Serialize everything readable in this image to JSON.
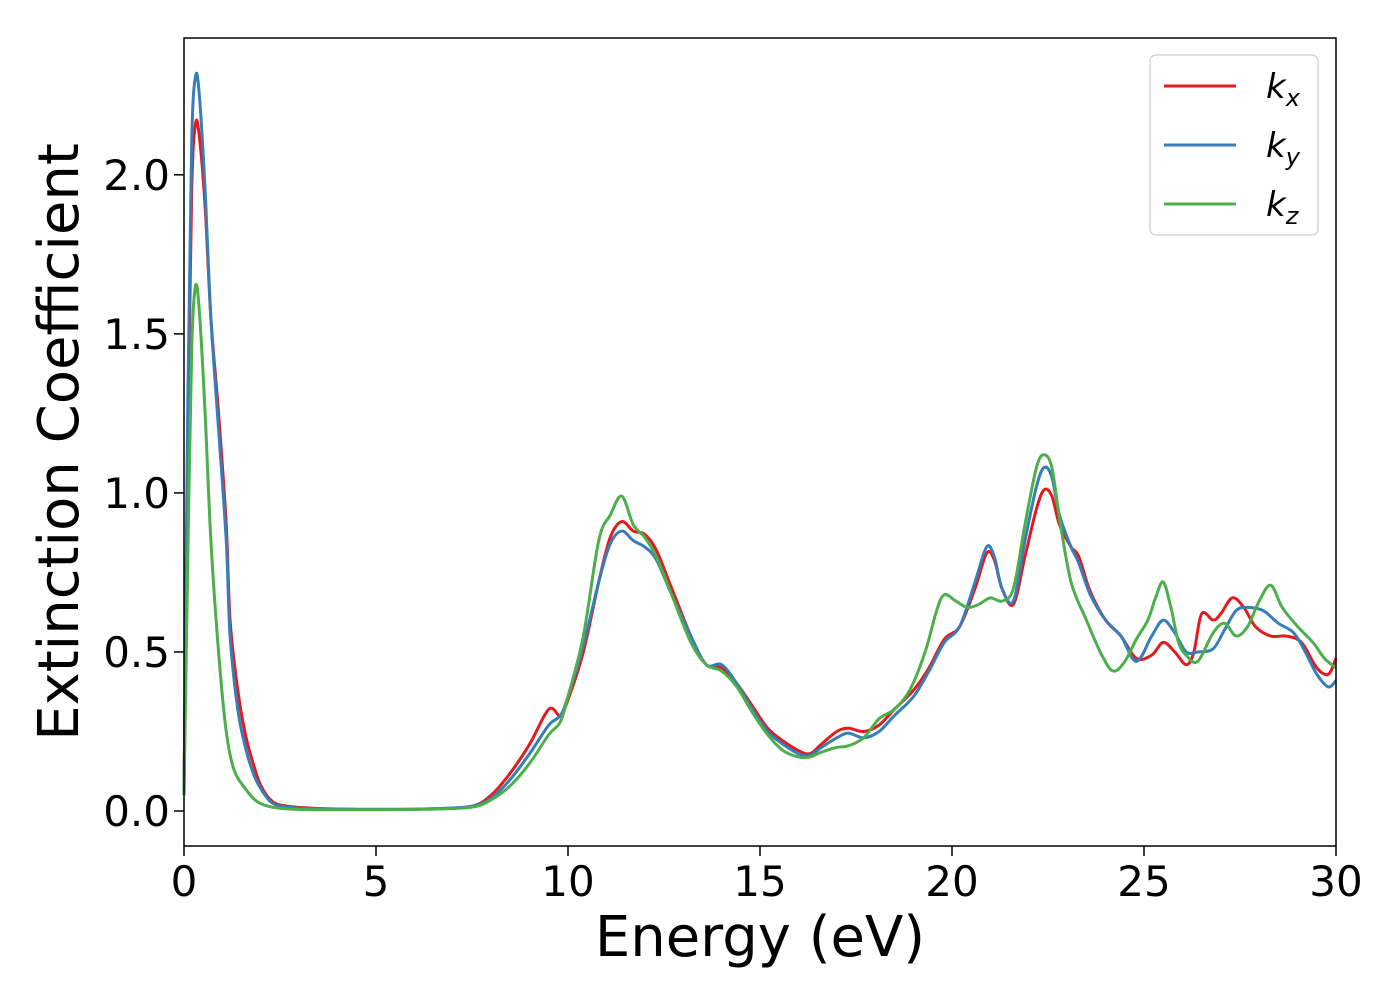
{
  "chart_data": {
    "type": "line",
    "title": "",
    "xlabel": "Energy (eV)",
    "ylabel": "Extinction Coefficient",
    "xlim": [
      0,
      30
    ],
    "ylim": [
      -0.11,
      2.43
    ],
    "xticks": [
      0,
      5,
      10,
      15,
      20,
      25,
      30
    ],
    "xtick_labels": [
      "0",
      "5",
      "10",
      "15",
      "20",
      "25",
      "30"
    ],
    "yticks": [
      0.0,
      0.5,
      1.0,
      1.5,
      2.0
    ],
    "ytick_labels": [
      "0.0",
      "0.5",
      "1.0",
      "1.5",
      "2.0"
    ],
    "grid": false,
    "legend_position": "top-right",
    "series": [
      {
        "name": "k",
        "name_sub": "x",
        "color": "#e41a1c",
        "points": [
          [
            0,
            0.05
          ],
          [
            0.1,
            1.2
          ],
          [
            0.2,
            1.95
          ],
          [
            0.3,
            2.16
          ],
          [
            0.4,
            2.12
          ],
          [
            0.55,
            1.9
          ],
          [
            0.7,
            1.55
          ],
          [
            0.9,
            1.25
          ],
          [
            1.1,
            0.9
          ],
          [
            1.2,
            0.6
          ],
          [
            1.4,
            0.38
          ],
          [
            1.6,
            0.24
          ],
          [
            1.8,
            0.15
          ],
          [
            2.0,
            0.08
          ],
          [
            2.3,
            0.03
          ],
          [
            2.7,
            0.015
          ],
          [
            3.5,
            0.008
          ],
          [
            5,
            0.005
          ],
          [
            6.5,
            0.007
          ],
          [
            7.5,
            0.015
          ],
          [
            8.0,
            0.05
          ],
          [
            8.5,
            0.12
          ],
          [
            9.0,
            0.21
          ],
          [
            9.5,
            0.32
          ],
          [
            9.8,
            0.3
          ],
          [
            10.0,
            0.35
          ],
          [
            10.4,
            0.5
          ],
          [
            10.8,
            0.72
          ],
          [
            11.1,
            0.86
          ],
          [
            11.4,
            0.91
          ],
          [
            11.7,
            0.88
          ],
          [
            12.0,
            0.87
          ],
          [
            12.3,
            0.82
          ],
          [
            12.7,
            0.7
          ],
          [
            13.2,
            0.55
          ],
          [
            13.6,
            0.46
          ],
          [
            14.0,
            0.45
          ],
          [
            14.4,
            0.4
          ],
          [
            14.8,
            0.33
          ],
          [
            15.2,
            0.26
          ],
          [
            15.6,
            0.22
          ],
          [
            16.0,
            0.19
          ],
          [
            16.3,
            0.18
          ],
          [
            16.6,
            0.21
          ],
          [
            17.0,
            0.25
          ],
          [
            17.3,
            0.26
          ],
          [
            17.7,
            0.25
          ],
          [
            18.1,
            0.27
          ],
          [
            18.5,
            0.32
          ],
          [
            19.0,
            0.38
          ],
          [
            19.4,
            0.45
          ],
          [
            19.8,
            0.54
          ],
          [
            20.2,
            0.58
          ],
          [
            20.6,
            0.7
          ],
          [
            20.9,
            0.81
          ],
          [
            21.1,
            0.79
          ],
          [
            21.3,
            0.7
          ],
          [
            21.6,
            0.65
          ],
          [
            21.9,
            0.8
          ],
          [
            22.2,
            0.95
          ],
          [
            22.4,
            1.01
          ],
          [
            22.6,
            0.99
          ],
          [
            22.8,
            0.9
          ],
          [
            23.1,
            0.83
          ],
          [
            23.3,
            0.8
          ],
          [
            23.6,
            0.69
          ],
          [
            24.0,
            0.6
          ],
          [
            24.4,
            0.55
          ],
          [
            24.8,
            0.48
          ],
          [
            25.2,
            0.49
          ],
          [
            25.5,
            0.53
          ],
          [
            25.8,
            0.5
          ],
          [
            26.1,
            0.46
          ],
          [
            26.3,
            0.5
          ],
          [
            26.5,
            0.62
          ],
          [
            26.8,
            0.6
          ],
          [
            27.0,
            0.62
          ],
          [
            27.3,
            0.67
          ],
          [
            27.6,
            0.64
          ],
          [
            27.9,
            0.58
          ],
          [
            28.3,
            0.55
          ],
          [
            28.7,
            0.55
          ],
          [
            29.1,
            0.53
          ],
          [
            29.5,
            0.45
          ],
          [
            29.8,
            0.43
          ],
          [
            30.0,
            0.48
          ]
        ]
      },
      {
        "name": "k",
        "name_sub": "y",
        "color": "#377eb8",
        "points": [
          [
            0,
            0.05
          ],
          [
            0.1,
            1.3
          ],
          [
            0.2,
            2.1
          ],
          [
            0.3,
            2.31
          ],
          [
            0.4,
            2.25
          ],
          [
            0.55,
            1.95
          ],
          [
            0.7,
            1.55
          ],
          [
            0.9,
            1.2
          ],
          [
            1.1,
            0.85
          ],
          [
            1.2,
            0.55
          ],
          [
            1.4,
            0.32
          ],
          [
            1.6,
            0.2
          ],
          [
            1.8,
            0.12
          ],
          [
            2.0,
            0.07
          ],
          [
            2.3,
            0.025
          ],
          [
            2.7,
            0.012
          ],
          [
            3.5,
            0.007
          ],
          [
            5,
            0.005
          ],
          [
            6.5,
            0.007
          ],
          [
            7.5,
            0.015
          ],
          [
            8.0,
            0.04
          ],
          [
            8.5,
            0.1
          ],
          [
            9.0,
            0.18
          ],
          [
            9.5,
            0.27
          ],
          [
            9.8,
            0.3
          ],
          [
            10.0,
            0.36
          ],
          [
            10.4,
            0.52
          ],
          [
            10.8,
            0.72
          ],
          [
            11.1,
            0.84
          ],
          [
            11.4,
            0.88
          ],
          [
            11.7,
            0.85
          ],
          [
            12.0,
            0.83
          ],
          [
            12.3,
            0.79
          ],
          [
            12.7,
            0.68
          ],
          [
            13.2,
            0.55
          ],
          [
            13.6,
            0.46
          ],
          [
            14.0,
            0.46
          ],
          [
            14.4,
            0.4
          ],
          [
            14.8,
            0.32
          ],
          [
            15.2,
            0.25
          ],
          [
            15.6,
            0.21
          ],
          [
            16.0,
            0.18
          ],
          [
            16.3,
            0.175
          ],
          [
            16.6,
            0.2
          ],
          [
            17.0,
            0.23
          ],
          [
            17.3,
            0.245
          ],
          [
            17.7,
            0.23
          ],
          [
            18.1,
            0.25
          ],
          [
            18.5,
            0.3
          ],
          [
            19.0,
            0.36
          ],
          [
            19.4,
            0.44
          ],
          [
            19.8,
            0.53
          ],
          [
            20.2,
            0.58
          ],
          [
            20.6,
            0.72
          ],
          [
            20.9,
            0.83
          ],
          [
            21.1,
            0.8
          ],
          [
            21.3,
            0.7
          ],
          [
            21.6,
            0.66
          ],
          [
            21.9,
            0.85
          ],
          [
            22.2,
            1.02
          ],
          [
            22.4,
            1.08
          ],
          [
            22.6,
            1.05
          ],
          [
            22.8,
            0.93
          ],
          [
            23.1,
            0.83
          ],
          [
            23.3,
            0.78
          ],
          [
            23.6,
            0.68
          ],
          [
            24.0,
            0.6
          ],
          [
            24.4,
            0.55
          ],
          [
            24.8,
            0.47
          ],
          [
            25.2,
            0.55
          ],
          [
            25.5,
            0.6
          ],
          [
            25.8,
            0.56
          ],
          [
            26.1,
            0.5
          ],
          [
            26.4,
            0.5
          ],
          [
            26.8,
            0.51
          ],
          [
            27.1,
            0.57
          ],
          [
            27.4,
            0.63
          ],
          [
            27.7,
            0.64
          ],
          [
            28.1,
            0.63
          ],
          [
            28.5,
            0.59
          ],
          [
            28.9,
            0.56
          ],
          [
            29.2,
            0.5
          ],
          [
            29.5,
            0.43
          ],
          [
            29.8,
            0.39
          ],
          [
            30.0,
            0.41
          ]
        ]
      },
      {
        "name": "k",
        "name_sub": "z",
        "color": "#4daf4a",
        "points": [
          [
            0,
            0.05
          ],
          [
            0.1,
            0.8
          ],
          [
            0.2,
            1.45
          ],
          [
            0.3,
            1.65
          ],
          [
            0.4,
            1.57
          ],
          [
            0.55,
            1.25
          ],
          [
            0.7,
            0.85
          ],
          [
            0.9,
            0.5
          ],
          [
            1.1,
            0.25
          ],
          [
            1.3,
            0.13
          ],
          [
            1.6,
            0.07
          ],
          [
            1.9,
            0.03
          ],
          [
            2.3,
            0.012
          ],
          [
            2.8,
            0.006
          ],
          [
            3.5,
            0.004
          ],
          [
            5,
            0.004
          ],
          [
            6.5,
            0.006
          ],
          [
            7.5,
            0.012
          ],
          [
            8.0,
            0.035
          ],
          [
            8.5,
            0.08
          ],
          [
            9.0,
            0.15
          ],
          [
            9.5,
            0.24
          ],
          [
            9.8,
            0.28
          ],
          [
            10.0,
            0.36
          ],
          [
            10.4,
            0.55
          ],
          [
            10.8,
            0.85
          ],
          [
            11.1,
            0.93
          ],
          [
            11.4,
            0.99
          ],
          [
            11.7,
            0.9
          ],
          [
            12.0,
            0.86
          ],
          [
            12.3,
            0.8
          ],
          [
            12.7,
            0.68
          ],
          [
            13.2,
            0.53
          ],
          [
            13.6,
            0.46
          ],
          [
            14.0,
            0.44
          ],
          [
            14.4,
            0.39
          ],
          [
            14.8,
            0.31
          ],
          [
            15.2,
            0.24
          ],
          [
            15.6,
            0.19
          ],
          [
            16.0,
            0.17
          ],
          [
            16.3,
            0.17
          ],
          [
            16.6,
            0.185
          ],
          [
            17.0,
            0.2
          ],
          [
            17.3,
            0.205
          ],
          [
            17.7,
            0.23
          ],
          [
            18.1,
            0.29
          ],
          [
            18.5,
            0.32
          ],
          [
            18.9,
            0.38
          ],
          [
            19.3,
            0.5
          ],
          [
            19.6,
            0.63
          ],
          [
            19.8,
            0.68
          ],
          [
            20.1,
            0.66
          ],
          [
            20.4,
            0.64
          ],
          [
            20.7,
            0.65
          ],
          [
            21.0,
            0.67
          ],
          [
            21.3,
            0.66
          ],
          [
            21.6,
            0.7
          ],
          [
            21.9,
            0.9
          ],
          [
            22.2,
            1.08
          ],
          [
            22.4,
            1.12
          ],
          [
            22.6,
            1.08
          ],
          [
            22.8,
            0.92
          ],
          [
            23.1,
            0.72
          ],
          [
            23.5,
            0.6
          ],
          [
            23.9,
            0.49
          ],
          [
            24.2,
            0.44
          ],
          [
            24.5,
            0.47
          ],
          [
            24.8,
            0.54
          ],
          [
            25.1,
            0.6
          ],
          [
            25.3,
            0.67
          ],
          [
            25.5,
            0.72
          ],
          [
            25.7,
            0.64
          ],
          [
            25.9,
            0.53
          ],
          [
            26.1,
            0.49
          ],
          [
            26.4,
            0.47
          ],
          [
            26.8,
            0.56
          ],
          [
            27.1,
            0.59
          ],
          [
            27.4,
            0.55
          ],
          [
            27.7,
            0.58
          ],
          [
            28.0,
            0.66
          ],
          [
            28.3,
            0.71
          ],
          [
            28.6,
            0.64
          ],
          [
            29.0,
            0.58
          ],
          [
            29.4,
            0.53
          ],
          [
            29.7,
            0.48
          ],
          [
            30.0,
            0.45
          ]
        ]
      }
    ]
  }
}
